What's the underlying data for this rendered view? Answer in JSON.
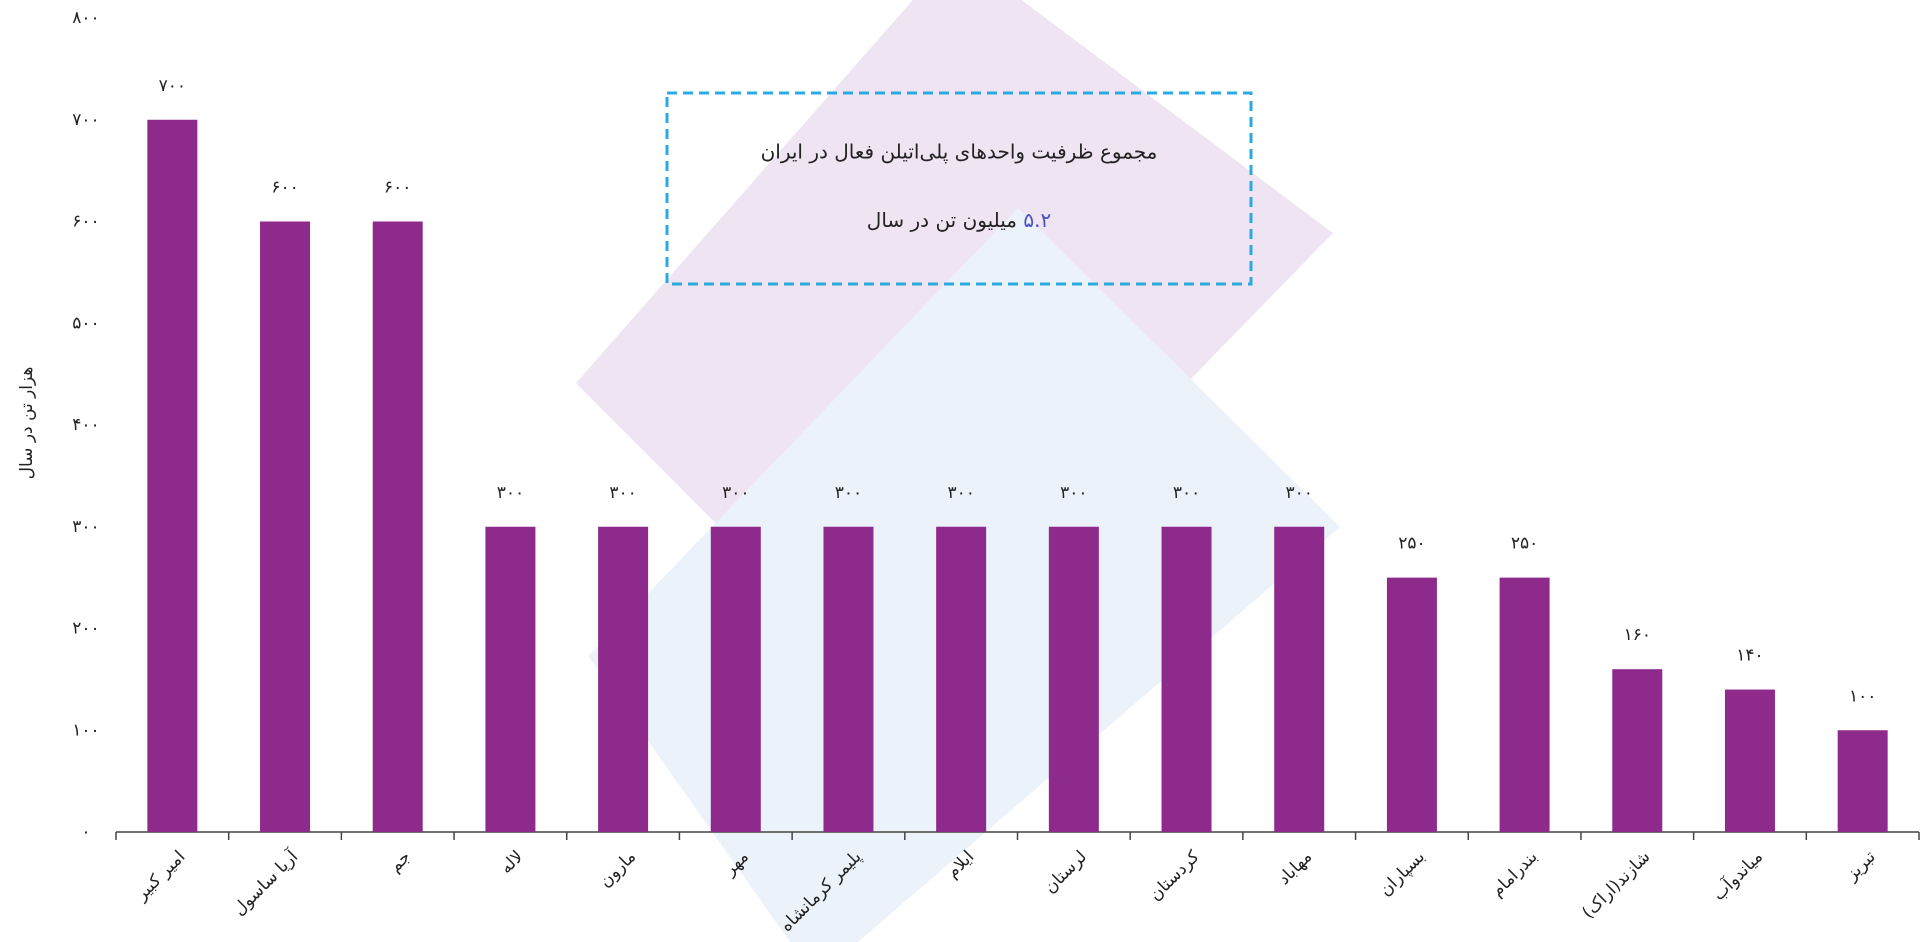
{
  "chart_data": {
    "type": "bar",
    "y_label": "هزار تن در سال",
    "annotation": {
      "text": "مجموع ظرفیت واحدهای پلی‌اتیلن فعال در ایران",
      "value_label": "۵.۲",
      "unit": "میلیون تن در سال"
    },
    "categories": [
      "امیر کبیر",
      "آریا ساسول",
      "جم",
      "لاله",
      "مارون",
      "مهر",
      "پلیمر کرمانشاه",
      "ایلام",
      "لرستان",
      "کردستان",
      "مهاباد",
      "بسپاران",
      "بندرامام",
      "شازند(اراک)",
      "میاندوآب",
      "تبریز"
    ],
    "values": [
      700,
      600,
      600,
      300,
      300,
      300,
      300,
      300,
      300,
      300,
      300,
      250,
      250,
      160,
      140,
      100
    ],
    "value_labels": [
      "۷۰۰",
      "۶۰۰",
      "۶۰۰",
      "۳۰۰",
      "۳۰۰",
      "۳۰۰",
      "۳۰۰",
      "۳۰۰",
      "۳۰۰",
      "۳۰۰",
      "۳۰۰",
      "۲۵۰",
      "۲۵۰",
      "۱۶۰",
      "۱۴۰",
      "۱۰۰"
    ],
    "color": "#8e2a8b",
    "ylim": [
      0,
      800
    ],
    "yticks": [
      {
        "value": 0,
        "label": "۰"
      },
      {
        "value": 100,
        "label": "۱۰۰"
      },
      {
        "value": 200,
        "label": "۲۰۰"
      },
      {
        "value": 300,
        "label": "۳۰۰"
      },
      {
        "value": 400,
        "label": "۴۰۰"
      },
      {
        "value": 500,
        "label": "۵۰۰"
      },
      {
        "value": 600,
        "label": "۶۰۰"
      },
      {
        "value": 700,
        "label": "۷۰۰"
      },
      {
        "value": 800,
        "label": "۸۰۰"
      }
    ],
    "grid": false
  }
}
